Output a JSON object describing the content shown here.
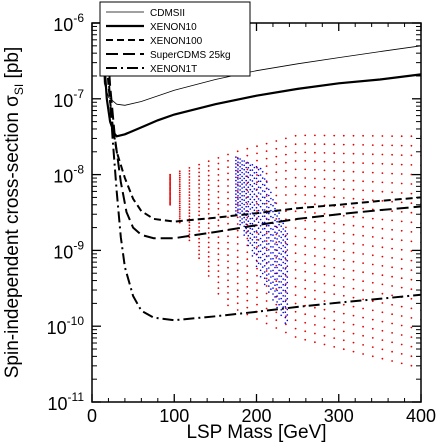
{
  "chart_data": {
    "type": "scatter",
    "xlabel": "LSP Mass  [GeV]",
    "ylabel": "Spin-independent cross-section  σ",
    "ylabel_subscript": "SI",
    "ylabel_unit": "[pb]",
    "xlim": [
      0,
      400
    ],
    "ylim": [
      1e-11,
      1e-06
    ],
    "yscale": "log",
    "grid": false,
    "legend_position": "top-left",
    "x_ticks": [
      {
        "value": 0,
        "label": "0"
      },
      {
        "value": 100,
        "label": "100"
      },
      {
        "value": 200,
        "label": "200"
      },
      {
        "value": 300,
        "label": "300"
      },
      {
        "value": 400,
        "label": "400"
      }
    ],
    "y_ticks": [
      {
        "value": 1e-11,
        "base": "10",
        "exp": "-11"
      },
      {
        "value": 1e-10,
        "base": "10",
        "exp": "-10"
      },
      {
        "value": 1e-09,
        "base": "10",
        "exp": "-9"
      },
      {
        "value": 1e-08,
        "base": "10",
        "exp": "-8"
      },
      {
        "value": 1e-07,
        "base": "10",
        "exp": "-7"
      },
      {
        "value": 1e-06,
        "base": "10",
        "exp": "-6"
      }
    ],
    "series": [
      {
        "name": "CDMSII",
        "style": "thin-solid",
        "color": "#000000",
        "points": [
          [
            12,
            1e-06
          ],
          [
            15,
            1.6e-07
          ],
          [
            20,
            1.05e-07
          ],
          [
            30,
            8.5e-08
          ],
          [
            40,
            8.2e-08
          ],
          [
            60,
            9.2e-08
          ],
          [
            100,
            1.3e-07
          ],
          [
            150,
            1.8e-07
          ],
          [
            200,
            2.35e-07
          ],
          [
            250,
            2.9e-07
          ],
          [
            300,
            3.5e-07
          ],
          [
            350,
            4.2e-07
          ],
          [
            400,
            5e-07
          ]
        ]
      },
      {
        "name": "XENON10",
        "style": "solid",
        "color": "#000000",
        "points": [
          [
            13,
            1e-06
          ],
          [
            15,
            3e-07
          ],
          [
            18,
            1e-07
          ],
          [
            22,
            5e-08
          ],
          [
            27,
            3.5e-08
          ],
          [
            30,
            3.2e-08
          ],
          [
            40,
            3.4e-08
          ],
          [
            60,
            4.2e-08
          ],
          [
            80,
            5.2e-08
          ],
          [
            100,
            6.2e-08
          ],
          [
            150,
            8.5e-08
          ],
          [
            200,
            1.1e-07
          ],
          [
            250,
            1.35e-07
          ],
          [
            300,
            1.6e-07
          ],
          [
            350,
            1.8e-07
          ],
          [
            400,
            2.1e-07
          ]
        ]
      },
      {
        "name": "XENON100",
        "style": "dashed",
        "color": "#000000",
        "points": [
          [
            15,
            1e-06
          ],
          [
            20,
            1.5e-07
          ],
          [
            25,
            4.5e-08
          ],
          [
            30,
            2e-08
          ],
          [
            40,
            9e-09
          ],
          [
            50,
            4.8e-09
          ],
          [
            60,
            3.3e-09
          ],
          [
            75,
            2.6e-09
          ],
          [
            100,
            2.4e-09
          ],
          [
            150,
            2.7e-09
          ],
          [
            200,
            3.1e-09
          ],
          [
            250,
            3.6e-09
          ],
          [
            300,
            4e-09
          ],
          [
            350,
            4.5e-09
          ],
          [
            400,
            5e-09
          ]
        ]
      },
      {
        "name": "SuperCDMS 25kg",
        "style": "long-dashed",
        "color": "#000000",
        "points": [
          [
            17,
            1e-06
          ],
          [
            22,
            1.5e-07
          ],
          [
            28,
            3e-08
          ],
          [
            35,
            8e-09
          ],
          [
            42,
            3.2e-09
          ],
          [
            50,
            2e-09
          ],
          [
            60,
            1.6e-09
          ],
          [
            75,
            1.45e-09
          ],
          [
            100,
            1.45e-09
          ],
          [
            150,
            1.75e-09
          ],
          [
            200,
            2.15e-09
          ],
          [
            250,
            2.6e-09
          ],
          [
            300,
            3e-09
          ],
          [
            350,
            3.4e-09
          ],
          [
            400,
            3.8e-09
          ]
        ]
      },
      {
        "name": "XENON1T",
        "style": "dash-dot",
        "color": "#000000",
        "points": [
          [
            15,
            1e-06
          ],
          [
            20,
            2e-07
          ],
          [
            25,
            3e-08
          ],
          [
            30,
            6e-09
          ],
          [
            35,
            1.5e-09
          ],
          [
            40,
            6e-10
          ],
          [
            50,
            2.5e-10
          ],
          [
            60,
            1.6e-10
          ],
          [
            75,
            1.3e-10
          ],
          [
            100,
            1.2e-10
          ],
          [
            150,
            1.35e-10
          ],
          [
            200,
            1.55e-10
          ],
          [
            250,
            1.8e-10
          ],
          [
            300,
            2.05e-10
          ],
          [
            350,
            2.3e-10
          ],
          [
            400,
            2.6e-10
          ]
        ]
      }
    ],
    "scan_regions": [
      {
        "name": "",
        "color": "#e60000",
        "mass_range": [
          95,
          400
        ],
        "sigma_upper_at_mass": [
          [
            95,
            1e-08
          ],
          [
            175,
            2e-08
          ],
          [
            250,
            3.3e-08
          ],
          [
            400,
            3.2e-08
          ]
        ],
        "sigma_lower_at_mass": [
          [
            95,
            4e-09
          ],
          [
            160,
            2e-10
          ],
          [
            250,
            7e-11
          ],
          [
            400,
            2.8e-11
          ]
        ]
      },
      {
        "name": "",
        "color": "#0000e6",
        "mass_range": [
          175,
          235
        ],
        "sigma_upper_at_mass": [
          [
            175,
            1.7e-08
          ],
          [
            205,
            1.2e-08
          ],
          [
            235,
            1.8e-09
          ]
        ],
        "sigma_lower_at_mass": [
          [
            175,
            3e-09
          ],
          [
            205,
            4.5e-10
          ],
          [
            235,
            1.1e-10
          ]
        ]
      }
    ],
    "colors": {
      "exclusion_lines": "#000000",
      "scan_red": "#e60000",
      "scan_blue": "#0000e6"
    }
  }
}
